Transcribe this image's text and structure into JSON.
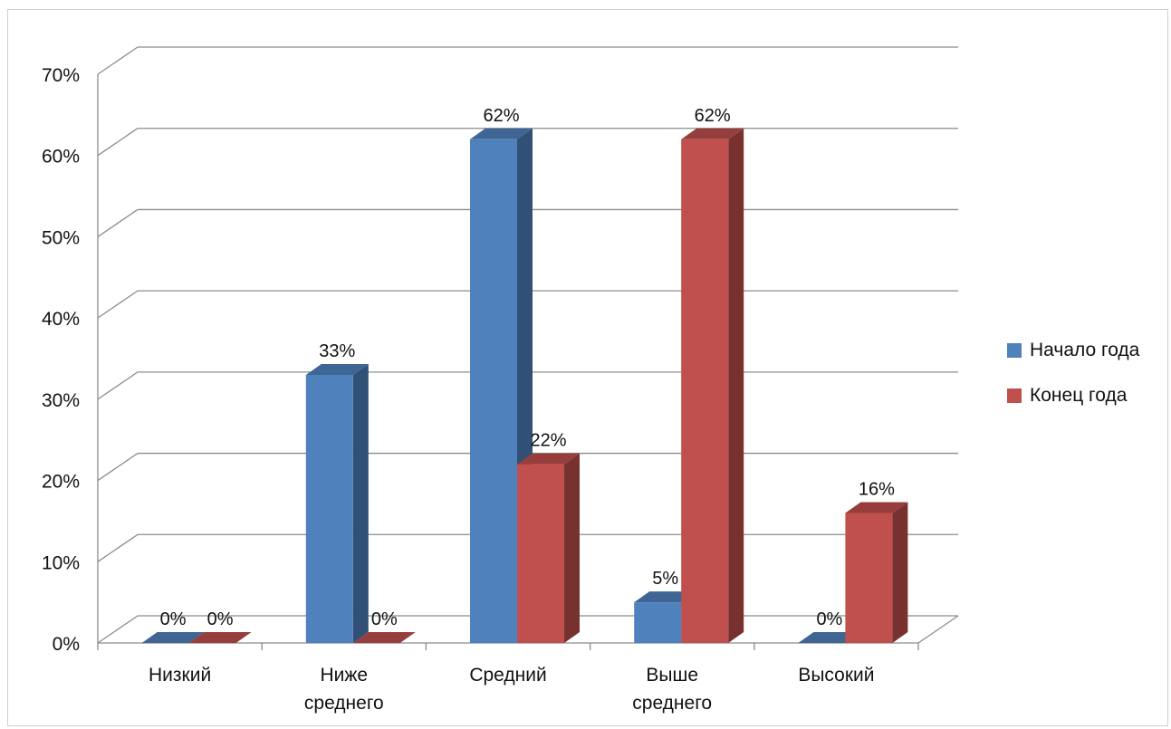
{
  "chart_data": {
    "type": "bar",
    "title": "",
    "xlabel": "",
    "ylabel": "",
    "ylim": [
      0,
      70
    ],
    "y_ticks": [
      "0%",
      "10%",
      "20%",
      "30%",
      "40%",
      "50%",
      "60%",
      "70%"
    ],
    "categories": [
      [
        "Низкий"
      ],
      [
        "Ниже",
        "среднего"
      ],
      [
        "Средний"
      ],
      [
        "Выше",
        "среднего"
      ],
      [
        "Высокий"
      ]
    ],
    "series": [
      {
        "name": "Начало года",
        "color": "#4F81BD",
        "values": [
          0,
          33,
          62,
          5,
          0
        ],
        "labels": [
          "0%",
          "33%",
          "62%",
          "5%",
          "0%"
        ]
      },
      {
        "name": "Конец года",
        "color": "#C0504D",
        "values": [
          0,
          0,
          22,
          62,
          16
        ],
        "labels": [
          "0%",
          "0%",
          "22%",
          "62%",
          "16%"
        ]
      }
    ],
    "grid": true,
    "legend_position": "right",
    "style": "3d-clustered-column"
  }
}
